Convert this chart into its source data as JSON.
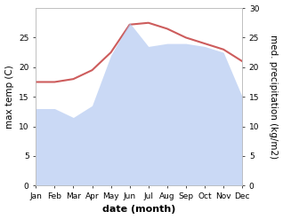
{
  "months": [
    "Jan",
    "Feb",
    "Mar",
    "Apr",
    "May",
    "Jun",
    "Jul",
    "Aug",
    "Sep",
    "Oct",
    "Nov",
    "Dec"
  ],
  "max_temp": [
    17.5,
    17.5,
    18.0,
    19.5,
    22.5,
    27.2,
    27.5,
    26.5,
    25.0,
    24.0,
    23.0,
    21.0
  ],
  "precipitation": [
    13.0,
    13.0,
    11.5,
    13.5,
    22.0,
    27.5,
    23.5,
    24.0,
    24.0,
    23.5,
    22.5,
    15.0
  ],
  "temp_color": "#cd5c5c",
  "precip_color": "#aec6f0",
  "precip_fill_alpha": 0.65,
  "temp_ylim": [
    0,
    30
  ],
  "precip_ylim": [
    0,
    30
  ],
  "xlabel": "date (month)",
  "ylabel_left": "max temp (C)",
  "ylabel_right": "med. precipitation (kg/m2)",
  "left_ticks": [
    0,
    5,
    10,
    15,
    20,
    25
  ],
  "right_ticks": [
    0,
    5,
    10,
    15,
    20,
    25,
    30
  ],
  "bg_color": "#ffffff",
  "spine_color": "#bbbbbb",
  "tick_fontsize": 6.5,
  "label_fontsize": 7.5,
  "xlabel_fontsize": 8
}
